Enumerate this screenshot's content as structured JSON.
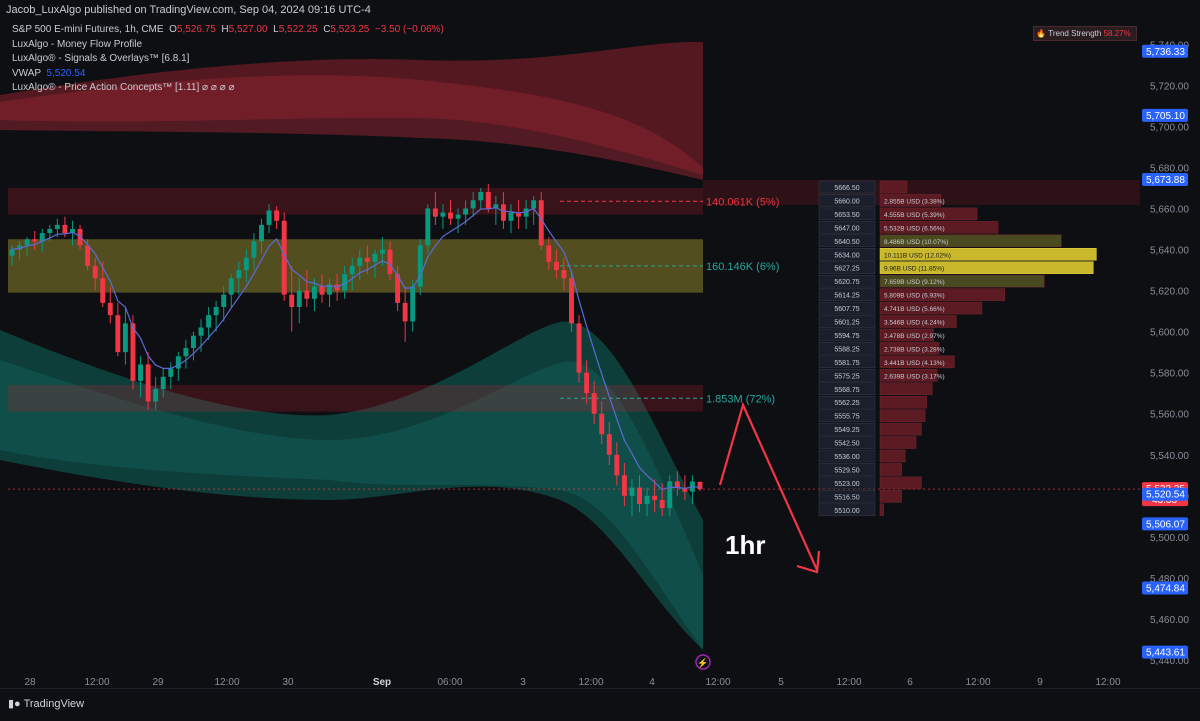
{
  "header": {
    "published_line": "Jacob_LuxAlgo published on TradingView.com, Sep 04, 2024 09:16 UTC-4"
  },
  "legend": {
    "symbol": "S&P 500 E-mini Futures, 1h, CME",
    "open_label": "O",
    "open": "5,526.75",
    "high_label": "H",
    "high": "5,527.00",
    "low_label": "L",
    "low": "5,522.25",
    "close_label": "C",
    "close": "5,523.25",
    "change": "−3.50 (−0.06%)",
    "indicators": [
      "LuxAlgo - Money Flow Profile",
      "LuxAlgo® - Signals & Overlays™ [6.8.1]",
      "VWAP",
      "LuxAlgo® - Price Action Concepts™ [1.11]  ⌀ ⌀ ⌀ ⌀"
    ],
    "vwap_value": "5,520.54"
  },
  "trend_strength": {
    "label": "Trend Strength",
    "value": "58.27%"
  },
  "annotation": {
    "text": "1hr"
  },
  "footer": {
    "brand": "TradingView"
  },
  "colors": {
    "up": "#089981",
    "down": "#f23645",
    "vwap": "#5b6bd6",
    "accent": "#2962ff",
    "zone_yellow": "#d4c63a"
  },
  "chart_data": {
    "type": "candlestick",
    "y_range": [
      5440,
      5745
    ],
    "y_ticks": [
      "5,740.00",
      "5,720.00",
      "5,700.00",
      "5,680.00",
      "5,660.00",
      "5,640.00",
      "5,620.00",
      "5,600.00",
      "5,580.00",
      "5,560.00",
      "5,540.00",
      "5,520.00",
      "5,500.00",
      "5,480.00",
      "5,460.00",
      "5,440.00"
    ],
    "x_ticks": [
      "28",
      "12:00",
      "29",
      "12:00",
      "30",
      "Sep",
      "06:00",
      "3",
      "12:00",
      "4",
      "12:00",
      "5",
      "12:00",
      "6",
      "12:00",
      "9",
      "12:00"
    ],
    "price_labels": [
      {
        "text": "5,736.33",
        "kind": "level",
        "y": 5736.33
      },
      {
        "text": "5,705.10",
        "kind": "level",
        "y": 5705.1
      },
      {
        "text": "5,673.88",
        "kind": "level",
        "y": 5673.88
      },
      {
        "text": "5,523.25",
        "kind": "current",
        "sub": "43:33",
        "y": 5523.25
      },
      {
        "text": "5,520.54",
        "kind": "vwap",
        "y": 5520.54
      },
      {
        "text": "5,506.07",
        "kind": "level",
        "y": 5506.07
      },
      {
        "text": "5,474.84",
        "kind": "level",
        "y": 5474.84
      },
      {
        "text": "5,443.61",
        "kind": "level",
        "y": 5443.61
      }
    ],
    "candles": [
      [
        5637,
        5642,
        5632,
        5640
      ],
      [
        5640,
        5644,
        5635,
        5642
      ],
      [
        5642,
        5646,
        5637,
        5645
      ],
      [
        5645,
        5649,
        5640,
        5644
      ],
      [
        5644,
        5650,
        5639,
        5648
      ],
      [
        5648,
        5652,
        5644,
        5650
      ],
      [
        5650,
        5655,
        5646,
        5652
      ],
      [
        5652,
        5656,
        5646,
        5648
      ],
      [
        5648,
        5654,
        5642,
        5650
      ],
      [
        5650,
        5652,
        5640,
        5642
      ],
      [
        5642,
        5645,
        5630,
        5632
      ],
      [
        5632,
        5636,
        5620,
        5626
      ],
      [
        5626,
        5634,
        5612,
        5614
      ],
      [
        5614,
        5622,
        5604,
        5608
      ],
      [
        5608,
        5614,
        5588,
        5590
      ],
      [
        5590,
        5612,
        5584,
        5604
      ],
      [
        5604,
        5608,
        5572,
        5576
      ],
      [
        5576,
        5588,
        5568,
        5584
      ],
      [
        5584,
        5590,
        5562,
        5566
      ],
      [
        5566,
        5578,
        5562,
        5572
      ],
      [
        5572,
        5582,
        5568,
        5578
      ],
      [
        5578,
        5585,
        5572,
        5582
      ],
      [
        5582,
        5590,
        5576,
        5588
      ],
      [
        5588,
        5596,
        5582,
        5592
      ],
      [
        5592,
        5600,
        5586,
        5598
      ],
      [
        5598,
        5606,
        5590,
        5602
      ],
      [
        5602,
        5612,
        5596,
        5608
      ],
      [
        5608,
        5615,
        5600,
        5612
      ],
      [
        5612,
        5622,
        5605,
        5618
      ],
      [
        5618,
        5628,
        5612,
        5626
      ],
      [
        5626,
        5634,
        5618,
        5630
      ],
      [
        5630,
        5640,
        5624,
        5636
      ],
      [
        5636,
        5648,
        5630,
        5644
      ],
      [
        5644,
        5655,
        5638,
        5652
      ],
      [
        5652,
        5662,
        5648,
        5659
      ],
      [
        5659,
        5661,
        5650,
        5654
      ],
      [
        5654,
        5658,
        5615,
        5618
      ],
      [
        5618,
        5632,
        5600,
        5612
      ],
      [
        5612,
        5626,
        5604,
        5620
      ],
      [
        5620,
        5630,
        5612,
        5616
      ],
      [
        5616,
        5626,
        5610,
        5622
      ],
      [
        5622,
        5628,
        5614,
        5618
      ],
      [
        5618,
        5626,
        5612,
        5623
      ],
      [
        5623,
        5628,
        5615,
        5620
      ],
      [
        5620,
        5632,
        5616,
        5628
      ],
      [
        5628,
        5636,
        5620,
        5632
      ],
      [
        5632,
        5640,
        5625,
        5636
      ],
      [
        5636,
        5642,
        5628,
        5634
      ],
      [
        5634,
        5640,
        5626,
        5638
      ],
      [
        5638,
        5646,
        5632,
        5640
      ],
      [
        5640,
        5644,
        5625,
        5628
      ],
      [
        5628,
        5632,
        5610,
        5614
      ],
      [
        5614,
        5622,
        5595,
        5605
      ],
      [
        5605,
        5625,
        5600,
        5622
      ],
      [
        5622,
        5645,
        5618,
        5642
      ],
      [
        5642,
        5662,
        5638,
        5660
      ],
      [
        5660,
        5668,
        5652,
        5656
      ],
      [
        5656,
        5662,
        5650,
        5658
      ],
      [
        5658,
        5664,
        5652,
        5655
      ],
      [
        5655,
        5660,
        5648,
        5657
      ],
      [
        5657,
        5664,
        5652,
        5660
      ],
      [
        5660,
        5668,
        5656,
        5664
      ],
      [
        5664,
        5670,
        5660,
        5668
      ],
      [
        5668,
        5672,
        5658,
        5660
      ],
      [
        5660,
        5666,
        5652,
        5662
      ],
      [
        5662,
        5668,
        5650,
        5654
      ],
      [
        5654,
        5662,
        5648,
        5658
      ],
      [
        5658,
        5664,
        5650,
        5656
      ],
      [
        5656,
        5664,
        5650,
        5660
      ],
      [
        5660,
        5666,
        5652,
        5664
      ],
      [
        5664,
        5668,
        5640,
        5642
      ],
      [
        5642,
        5646,
        5630,
        5634
      ],
      [
        5634,
        5640,
        5626,
        5630
      ],
      [
        5630,
        5636,
        5620,
        5626
      ],
      [
        5626,
        5630,
        5600,
        5604
      ],
      [
        5604,
        5608,
        5575,
        5580
      ],
      [
        5580,
        5586,
        5565,
        5570
      ],
      [
        5570,
        5576,
        5555,
        5560
      ],
      [
        5560,
        5566,
        5545,
        5550
      ],
      [
        5550,
        5556,
        5535,
        5540
      ],
      [
        5540,
        5546,
        5525,
        5530
      ],
      [
        5530,
        5536,
        5515,
        5520
      ],
      [
        5520,
        5528,
        5510,
        5524
      ],
      [
        5524,
        5530,
        5512,
        5516
      ],
      [
        5516,
        5524,
        5510,
        5520
      ],
      [
        5520,
        5528,
        5512,
        5518
      ],
      [
        5518,
        5526,
        5510,
        5514
      ],
      [
        5514,
        5530,
        5510,
        5527
      ],
      [
        5527,
        5532,
        5520,
        5524
      ],
      [
        5524,
        5530,
        5518,
        5522
      ],
      [
        5522,
        5530,
        5516,
        5527
      ],
      [
        5526.75,
        5527,
        5522.25,
        5523.25
      ]
    ],
    "volume_zones": [
      {
        "label": "140.061K (5%)",
        "top": 5670,
        "bottom": 5657,
        "color": "down"
      },
      {
        "label": "160.146K (6%)",
        "top": 5645,
        "bottom": 5619,
        "color": "yellow"
      },
      {
        "label": "1.853M (72%)",
        "top": 5574,
        "bottom": 5561,
        "color": "down"
      }
    ],
    "money_flow_profile": [
      {
        "price": "5666.50",
        "value": "",
        "pct": 1.5,
        "color": "red"
      },
      {
        "price": "5660.00",
        "value": "2.855B USD (3.38%)",
        "pct": 3.38,
        "color": "red"
      },
      {
        "price": "5653.50",
        "value": "4.555B USD (5.39%)",
        "pct": 5.39,
        "color": "red"
      },
      {
        "price": "5647.00",
        "value": "5.532B USD (6.56%)",
        "pct": 6.56,
        "color": "red"
      },
      {
        "price": "5640.50",
        "value": "8.486B USD (10.07%)",
        "pct": 10.07,
        "color": "olive"
      },
      {
        "price": "5634.00",
        "value": "10.111B USD (12.02%)",
        "pct": 12.02,
        "color": "yellow"
      },
      {
        "price": "5627.25",
        "value": "9.96B USD (11.85%)",
        "pct": 11.85,
        "color": "yellow"
      },
      {
        "price": "5620.75",
        "value": "7.659B USD (9.12%)",
        "pct": 9.12,
        "color": "olive"
      },
      {
        "price": "5614.25",
        "value": "5.809B USD (6.93%)",
        "pct": 6.93,
        "color": "red"
      },
      {
        "price": "5607.75",
        "value": "4.741B USD (5.66%)",
        "pct": 5.66,
        "color": "red"
      },
      {
        "price": "5601.25",
        "value": "3.546B USD (4.24%)",
        "pct": 4.24,
        "color": "red"
      },
      {
        "price": "5594.75",
        "value": "2.478B USD (2.97%)",
        "pct": 2.97,
        "color": "red"
      },
      {
        "price": "5588.25",
        "value": "2.738B USD (3.28%)",
        "pct": 3.28,
        "color": "red"
      },
      {
        "price": "5581.75",
        "value": "3.441B USD (4.13%)",
        "pct": 4.13,
        "color": "red"
      },
      {
        "price": "5575.25",
        "value": "2.639B USD (3.17%)",
        "pct": 3.17,
        "color": "red"
      },
      {
        "price": "5568.75",
        "value": "",
        "pct": 2.9,
        "color": "red"
      },
      {
        "price": "5562.25",
        "value": "",
        "pct": 2.6,
        "color": "red"
      },
      {
        "price": "5555.75",
        "value": "",
        "pct": 2.5,
        "color": "red"
      },
      {
        "price": "5549.25",
        "value": "",
        "pct": 2.3,
        "color": "red"
      },
      {
        "price": "5542.50",
        "value": "",
        "pct": 2.0,
        "color": "red"
      },
      {
        "price": "5536.00",
        "value": "",
        "pct": 1.4,
        "color": "red"
      },
      {
        "price": "5529.50",
        "value": "",
        "pct": 1.2,
        "color": "red"
      },
      {
        "price": "5523.00",
        "value": "",
        "pct": 2.3,
        "color": "red"
      },
      {
        "price": "5516.50",
        "value": "",
        "pct": 1.2,
        "color": "red"
      },
      {
        "price": "5510.00",
        "value": "",
        "pct": 0.2,
        "color": "red"
      }
    ]
  }
}
